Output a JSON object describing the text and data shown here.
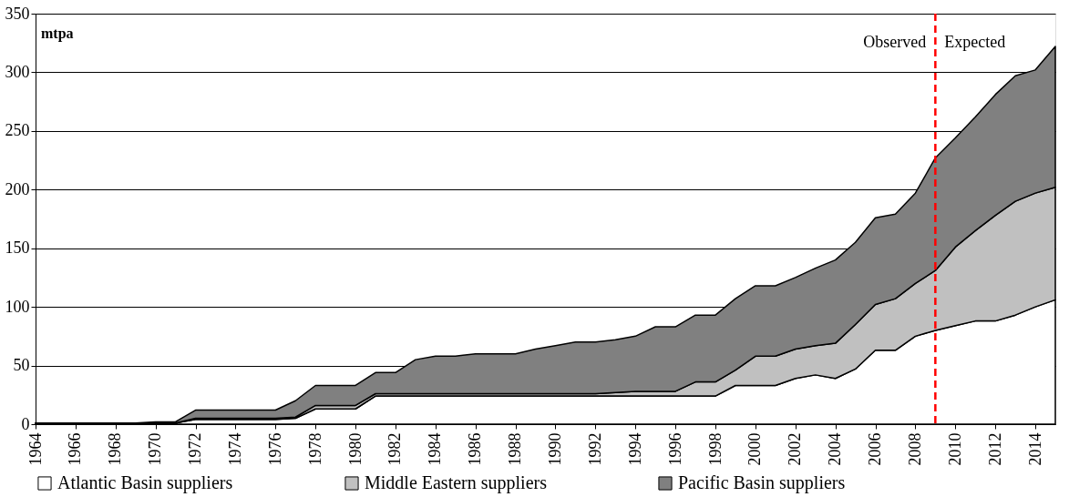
{
  "chart_data": {
    "type": "area",
    "stacked": true,
    "ylabel": "mtpa",
    "x": [
      1964,
      1965,
      1966,
      1967,
      1968,
      1969,
      1970,
      1971,
      1972,
      1973,
      1974,
      1975,
      1976,
      1977,
      1978,
      1979,
      1980,
      1981,
      1982,
      1983,
      1984,
      1985,
      1986,
      1987,
      1988,
      1989,
      1990,
      1991,
      1992,
      1993,
      1994,
      1995,
      1996,
      1997,
      1998,
      1999,
      2000,
      2001,
      2002,
      2003,
      2004,
      2005,
      2006,
      2007,
      2008,
      2009,
      2010,
      2011,
      2012,
      2013,
      2014,
      2015
    ],
    "series": [
      {
        "name": "Atlantic Basin suppliers",
        "color": "#ffffff",
        "values": [
          1,
          1,
          1,
          1,
          1,
          1,
          1,
          1,
          4,
          4,
          4,
          4,
          4,
          5,
          13,
          13,
          13,
          24,
          24,
          24,
          24,
          24,
          24,
          24,
          24,
          24,
          24,
          24,
          24,
          24,
          24,
          24,
          24,
          24,
          24,
          33,
          33,
          33,
          39,
          42,
          39,
          47,
          63,
          63,
          75,
          80,
          84,
          88,
          88,
          93,
          100,
          106
        ]
      },
      {
        "name": "Middle Eastern suppliers",
        "color": "#c0c0c0",
        "values": [
          0,
          0,
          0,
          0,
          0,
          0,
          0,
          0,
          1,
          1,
          1,
          1,
          1,
          1,
          3,
          3,
          3,
          2,
          2,
          2,
          2,
          2,
          2,
          2,
          2,
          2,
          2,
          2,
          2,
          3,
          4,
          4,
          4,
          12,
          12,
          13,
          25,
          25,
          25,
          25,
          30,
          38,
          39,
          44,
          45,
          51,
          67,
          77,
          90,
          97,
          97,
          96
        ]
      },
      {
        "name": "Pacific Basin suppliers",
        "color": "#808080",
        "values": [
          0,
          0,
          0,
          0,
          0,
          0,
          1,
          1,
          7,
          7,
          7,
          7,
          7,
          14,
          17,
          17,
          17,
          18,
          18,
          29,
          32,
          32,
          34,
          34,
          34,
          38,
          41,
          44,
          44,
          45,
          47,
          55,
          55,
          57,
          57,
          61,
          60,
          60,
          61,
          66,
          71,
          70,
          74,
          72,
          77,
          96,
          93,
          97,
          103,
          107,
          105,
          120
        ]
      }
    ],
    "xlim": [
      1964,
      2015
    ],
    "xticks": [
      1964,
      1966,
      1968,
      1970,
      1972,
      1974,
      1976,
      1978,
      1980,
      1982,
      1984,
      1986,
      1988,
      1990,
      1992,
      1994,
      1996,
      1998,
      2000,
      2002,
      2004,
      2006,
      2008,
      2010,
      2012,
      2014
    ],
    "ylim": [
      0,
      350
    ],
    "yticks": [
      0,
      50,
      100,
      150,
      200,
      250,
      300,
      350
    ],
    "grid": "y",
    "legend": "bottom",
    "ref_lines": [
      {
        "axis": "x",
        "value": 2009,
        "color": "#ff0000",
        "line_style": "dashed"
      }
    ],
    "annotations": [
      "Observed",
      "Expected"
    ]
  }
}
